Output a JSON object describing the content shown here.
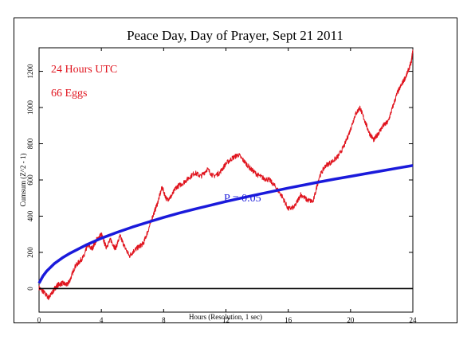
{
  "chart_data": {
    "type": "line",
    "title": "Peace Day, Day of Prayer, Sept 21 2011",
    "xlabel": "Hours (Resolution, 1 sec)",
    "ylabel": "Cumsum (Z^2 - 1)",
    "xlim": [
      0,
      24
    ],
    "ylim": [
      -130,
      1330
    ],
    "x_ticks": [
      0,
      4,
      8,
      12,
      16,
      20,
      24
    ],
    "y_ticks": [
      0,
      200,
      400,
      600,
      800,
      1000,
      1200
    ],
    "x_tick_labels": [
      "0",
      "4",
      "8",
      "12",
      "16",
      "20",
      "24"
    ],
    "y_tick_labels": [
      "0",
      "200",
      "400",
      "600",
      "800",
      "1000",
      "1200"
    ],
    "annotations": [
      {
        "text": "24 Hours UTC",
        "color": "#e0141e"
      },
      {
        "text": "66 Eggs",
        "color": "#e0141e"
      },
      {
        "text": "P = 0.05",
        "color": "#1a1adb"
      }
    ],
    "series": [
      {
        "style": "cumulative deviation",
        "color": "#e0141e",
        "x": [
          0,
          0.3,
          0.6,
          0.8,
          1.0,
          1.2,
          1.5,
          1.8,
          2.0,
          2.3,
          2.6,
          2.9,
          3.1,
          3.4,
          3.7,
          4.0,
          4.3,
          4.6,
          4.9,
          5.2,
          5.5,
          5.8,
          6.1,
          6.4,
          6.7,
          7.0,
          7.3,
          7.6,
          7.9,
          8.2,
          8.5,
          8.8,
          9.2,
          9.6,
          10.0,
          10.4,
          10.8,
          11.2,
          11.6,
          12.0,
          12.4,
          12.8,
          13.2,
          13.6,
          14.0,
          14.4,
          14.8,
          15.2,
          15.6,
          16.0,
          16.4,
          16.8,
          17.2,
          17.6,
          18.0,
          18.4,
          18.8,
          19.2,
          19.6,
          20.0,
          20.3,
          20.6,
          20.9,
          21.2,
          21.5,
          21.8,
          22.1,
          22.4,
          22.7,
          23.0,
          23.3,
          23.6,
          23.9,
          24.0
        ],
        "y": [
          5,
          -20,
          -50,
          -30,
          0,
          20,
          30,
          20,
          50,
          120,
          150,
          180,
          240,
          220,
          270,
          300,
          230,
          270,
          220,
          290,
          230,
          180,
          210,
          230,
          250,
          320,
          400,
          470,
          560,
          490,
          510,
          560,
          580,
          610,
          640,
          620,
          660,
          620,
          640,
          690,
          720,
          740,
          700,
          660,
          630,
          610,
          600,
          560,
          510,
          440,
          450,
          520,
          490,
          480,
          620,
          680,
          700,
          730,
          790,
          880,
          960,
          1000,
          930,
          860,
          820,
          860,
          900,
          920,
          1000,
          1080,
          1130,
          1180,
          1250,
          1320
        ]
      },
      {
        "name": "P = 0.05",
        "style": "probability envelope",
        "color": "#1a1adb",
        "x": [
          0,
          0.25,
          0.5,
          1,
          1.5,
          2,
          3,
          4,
          5,
          6,
          7,
          8,
          9,
          10,
          11,
          12,
          13,
          14,
          15,
          16,
          17,
          18,
          19,
          20,
          21,
          22,
          23,
          24
        ],
        "y": [
          30,
          69,
          98,
          139,
          170,
          196,
          240,
          278,
          310,
          340,
          367,
          393,
          417,
          439,
          460,
          481,
          500,
          519,
          537,
          555,
          572,
          589,
          605,
          620,
          635,
          650,
          665,
          680
        ]
      },
      {
        "style": "zero baseline",
        "color": "#000000",
        "x": [
          0,
          24
        ],
        "y": [
          0,
          0
        ]
      }
    ]
  }
}
